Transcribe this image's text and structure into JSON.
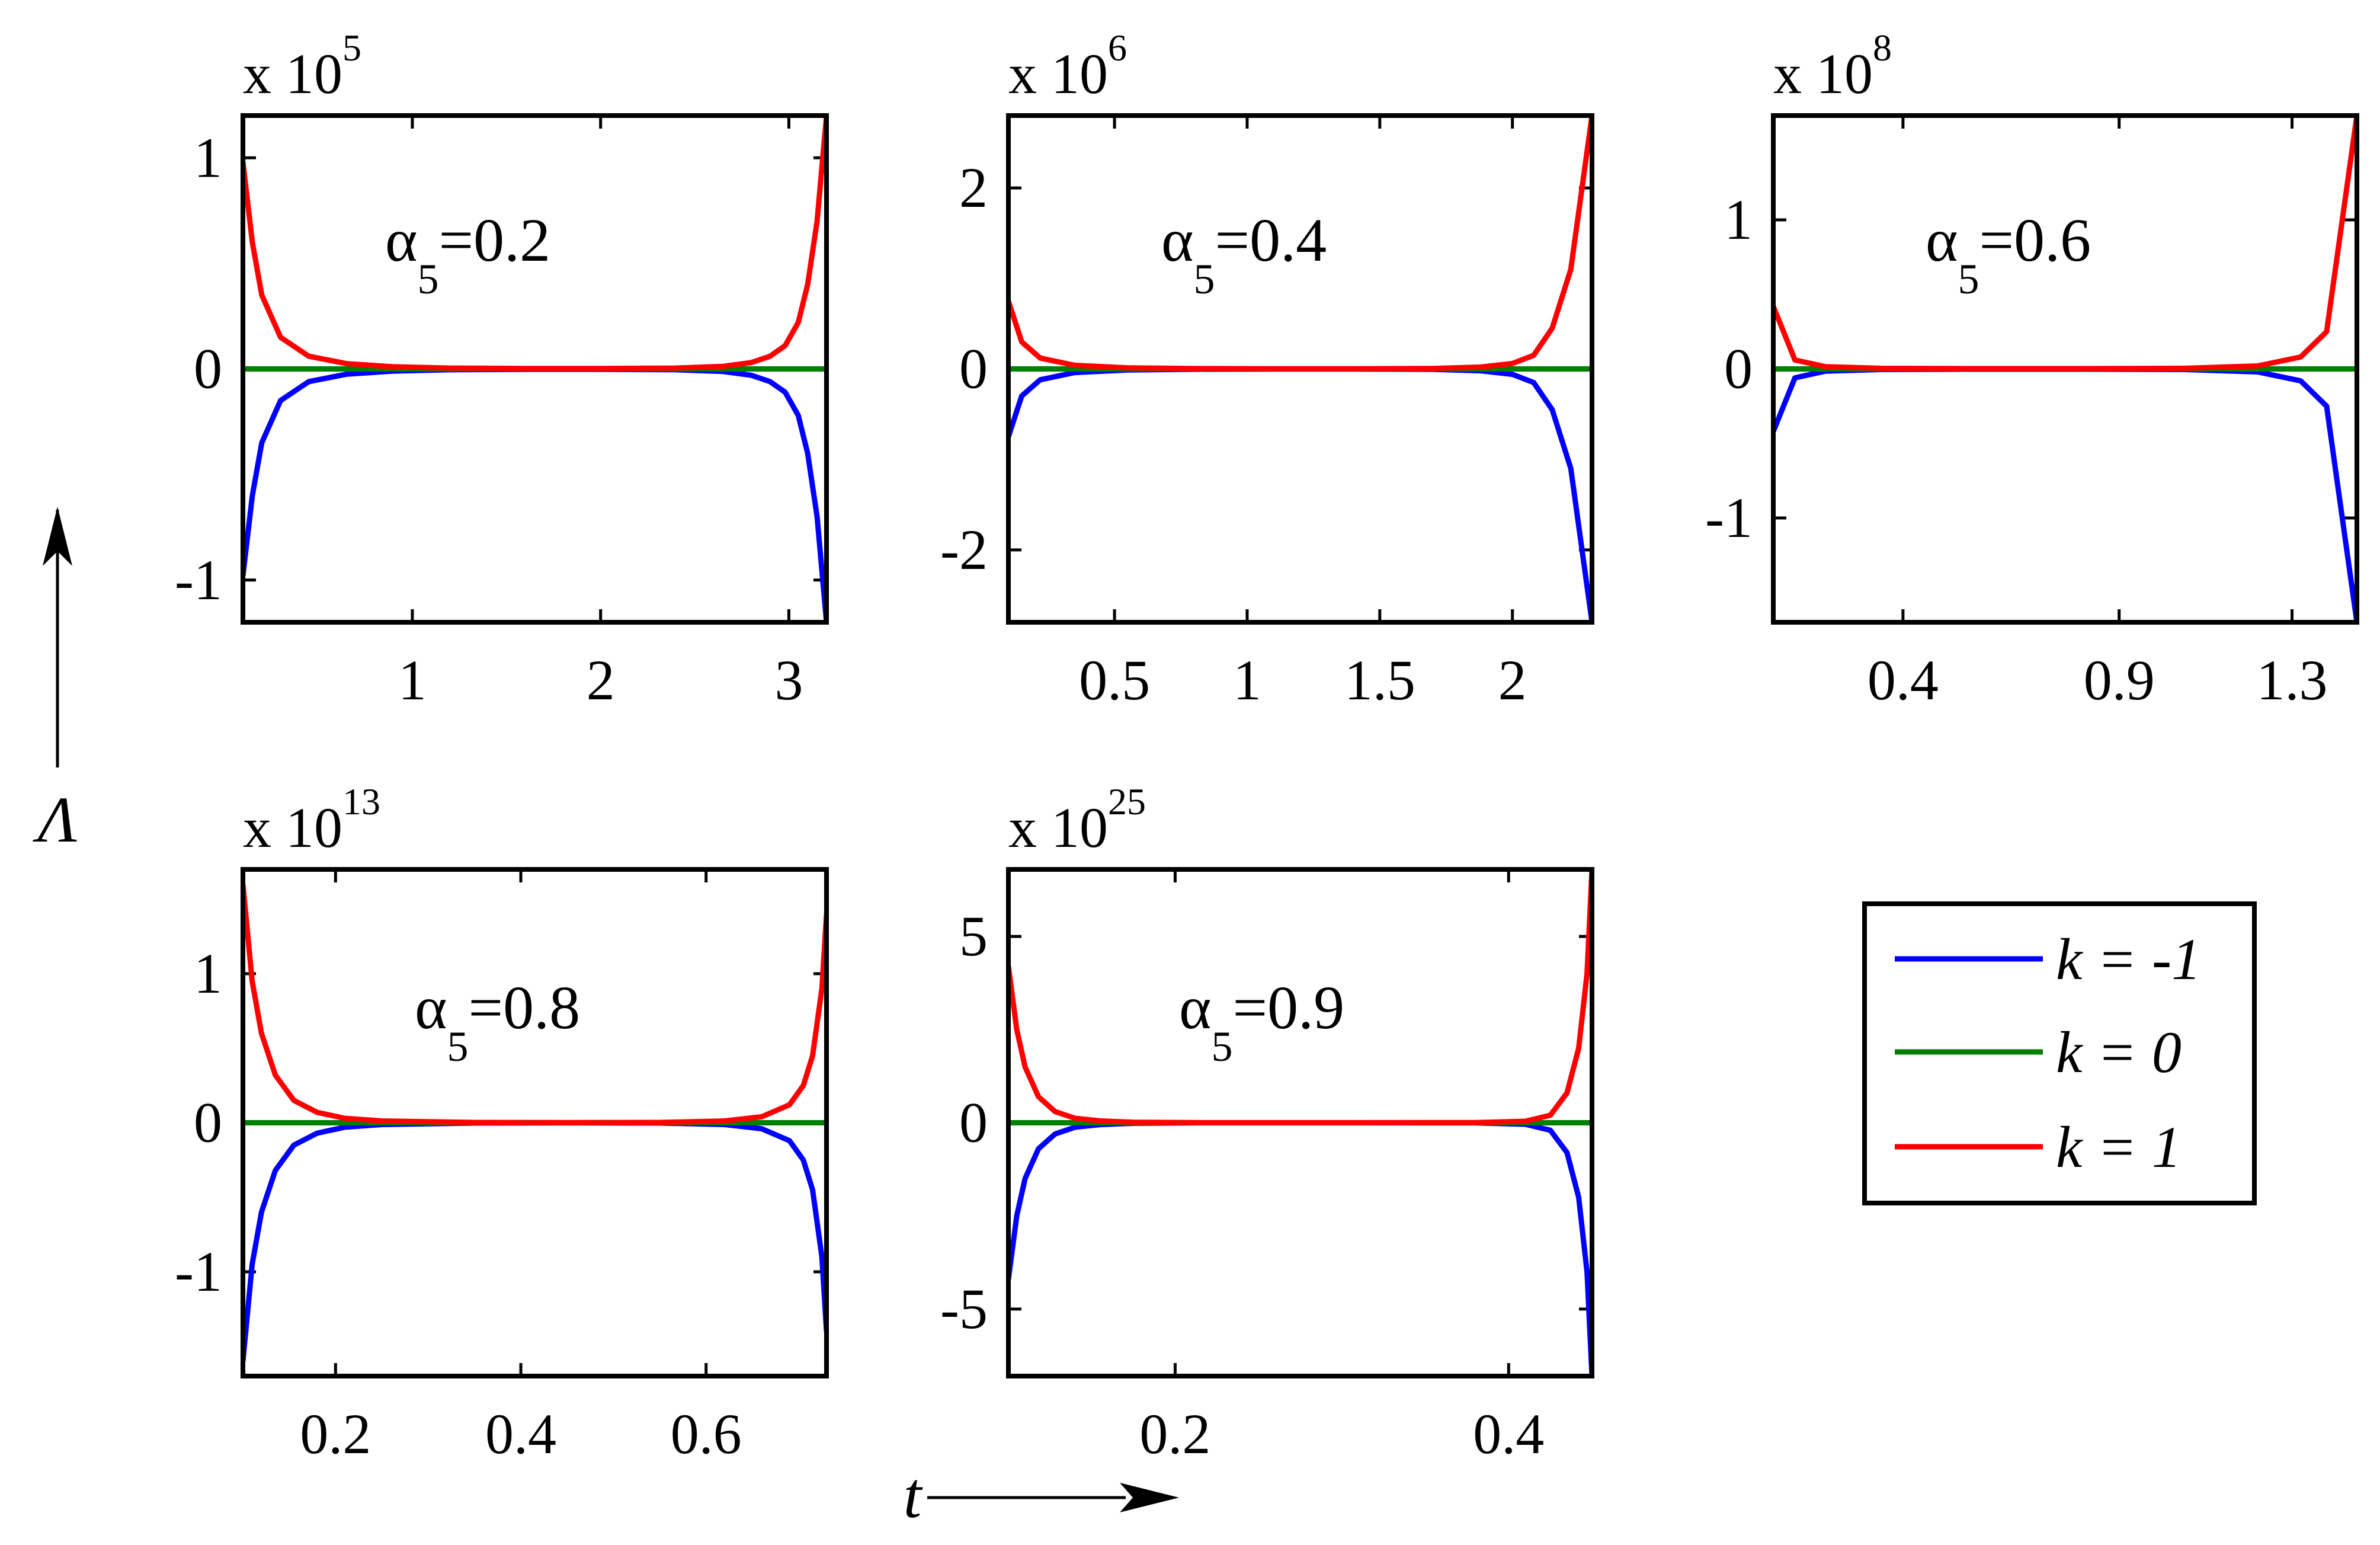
{
  "figure": {
    "y_axis_symbol": "Λ",
    "x_axis_symbol": "t"
  },
  "legend": {
    "entries": [
      {
        "label": "k = -1",
        "color": "#0000ff"
      },
      {
        "label": "k = 0",
        "color": "#008000"
      },
      {
        "label": "k = 1",
        "color": "#ff0000"
      }
    ]
  },
  "chart_data": [
    {
      "type": "line",
      "multiplier_base": "x 10",
      "multiplier_exponent": "5",
      "annotation": {
        "symbol": "α",
        "subscript": "5",
        "text": "=0.2"
      },
      "xlim": [
        0.1,
        3.2
      ],
      "ylim": [
        -1.2,
        1.2
      ],
      "xticks": [
        1,
        2,
        3
      ],
      "xtick_labels": [
        "1",
        "2",
        "3"
      ],
      "yticks": [
        -1,
        0,
        1
      ],
      "ytick_labels": [
        "-1",
        "0",
        "1"
      ],
      "series": [
        {
          "label": "k = -1",
          "x": [
            0.1,
            0.15,
            0.2,
            0.3,
            0.45,
            0.65,
            0.9,
            1.2,
            1.6,
            2.0,
            2.4,
            2.65,
            2.8,
            2.9,
            2.98,
            3.05,
            3.1,
            3.15,
            3.2
          ],
          "y": [
            -0.98,
            -0.6,
            -0.35,
            -0.15,
            -0.06,
            -0.025,
            -0.01,
            -0.004,
            -0.002,
            -0.002,
            -0.004,
            -0.012,
            -0.03,
            -0.06,
            -0.11,
            -0.22,
            -0.4,
            -0.7,
            -1.2
          ]
        },
        {
          "label": "k = 0",
          "x": [
            0.1,
            3.2
          ],
          "y": [
            0,
            0
          ]
        },
        {
          "label": "k = 1",
          "x": [
            0.1,
            0.15,
            0.2,
            0.3,
            0.45,
            0.65,
            0.9,
            1.2,
            1.6,
            2.0,
            2.4,
            2.65,
            2.8,
            2.9,
            2.98,
            3.05,
            3.1,
            3.15,
            3.2
          ],
          "y": [
            0.98,
            0.6,
            0.35,
            0.15,
            0.06,
            0.025,
            0.01,
            0.004,
            0.002,
            0.002,
            0.004,
            0.012,
            0.03,
            0.06,
            0.11,
            0.22,
            0.4,
            0.7,
            1.2
          ]
        }
      ]
    },
    {
      "type": "line",
      "multiplier_base": "x 10",
      "multiplier_exponent": "6",
      "annotation": {
        "symbol": "α",
        "subscript": "5",
        "text": "=0.4"
      },
      "xlim": [
        0.1,
        2.3
      ],
      "ylim": [
        -2.8,
        2.8
      ],
      "xticks": [
        0.5,
        1,
        1.5,
        2
      ],
      "xtick_labels": [
        "0.5",
        "1",
        "1.5",
        "2"
      ],
      "yticks": [
        -2,
        0,
        2
      ],
      "ytick_labels": [
        "-2",
        "0",
        "2"
      ],
      "series": [
        {
          "label": "k = -1",
          "x": [
            0.1,
            0.15,
            0.22,
            0.35,
            0.55,
            0.8,
            1.1,
            1.4,
            1.7,
            1.88,
            2.0,
            2.08,
            2.15,
            2.22,
            2.3
          ],
          "y": [
            -0.75,
            -0.3,
            -0.12,
            -0.04,
            -0.012,
            -0.004,
            -0.002,
            -0.002,
            -0.005,
            -0.02,
            -0.06,
            -0.15,
            -0.45,
            -1.1,
            -2.8
          ]
        },
        {
          "label": "k = 0",
          "x": [
            0.1,
            2.3
          ],
          "y": [
            0,
            0
          ]
        },
        {
          "label": "k = 1",
          "x": [
            0.1,
            0.15,
            0.22,
            0.35,
            0.55,
            0.8,
            1.1,
            1.4,
            1.7,
            1.88,
            2.0,
            2.08,
            2.15,
            2.22,
            2.3
          ],
          "y": [
            0.75,
            0.3,
            0.12,
            0.04,
            0.012,
            0.004,
            0.002,
            0.002,
            0.005,
            0.02,
            0.06,
            0.15,
            0.45,
            1.1,
            2.8
          ]
        }
      ]
    },
    {
      "type": "line",
      "multiplier_base": "x 10",
      "multiplier_exponent": "8",
      "annotation": {
        "symbol": "α",
        "subscript": "5",
        "text": "=0.6"
      },
      "xlim": [
        0.1,
        1.45
      ],
      "ylim": [
        -1.7,
        1.7
      ],
      "xticks": [
        0.4,
        0.9,
        1.3
      ],
      "xtick_labels": [
        "0.4",
        "0.9",
        "1.3"
      ],
      "yticks": [
        -1,
        0,
        1
      ],
      "ytick_labels": [
        "-1",
        "0",
        "1"
      ],
      "series": [
        {
          "label": "k = -1",
          "x": [
            0.1,
            0.15,
            0.22,
            0.35,
            0.55,
            0.8,
            1.05,
            1.22,
            1.32,
            1.38,
            1.45
          ],
          "y": [
            -0.42,
            -0.06,
            -0.015,
            -0.004,
            -0.002,
            -0.002,
            -0.004,
            -0.02,
            -0.08,
            -0.25,
            -1.7
          ]
        },
        {
          "label": "k = 0",
          "x": [
            0.1,
            1.45
          ],
          "y": [
            0,
            0
          ]
        },
        {
          "label": "k = 1",
          "x": [
            0.1,
            0.15,
            0.22,
            0.35,
            0.55,
            0.8,
            1.05,
            1.22,
            1.32,
            1.38,
            1.45
          ],
          "y": [
            0.42,
            0.06,
            0.015,
            0.004,
            0.002,
            0.002,
            0.004,
            0.02,
            0.08,
            0.25,
            1.7
          ]
        }
      ]
    },
    {
      "type": "line",
      "multiplier_base": "x 10",
      "multiplier_exponent": "13",
      "annotation": {
        "symbol": "α",
        "subscript": "5",
        "text": "=0.8"
      },
      "xlim": [
        0.1,
        0.73
      ],
      "ylim": [
        -1.7,
        1.7
      ],
      "xticks": [
        0.2,
        0.4,
        0.6
      ],
      "xtick_labels": [
        "0.2",
        "0.4",
        "0.6"
      ],
      "yticks": [
        -1,
        0,
        1
      ],
      "ytick_labels": [
        "-1",
        "0",
        "1"
      ],
      "series": [
        {
          "label": "k = -1",
          "x": [
            0.1,
            0.11,
            0.12,
            0.135,
            0.155,
            0.18,
            0.21,
            0.25,
            0.35,
            0.45,
            0.55,
            0.62,
            0.66,
            0.69,
            0.705,
            0.715,
            0.725,
            0.73
          ],
          "y": [
            -1.6,
            -0.95,
            -0.6,
            -0.32,
            -0.15,
            -0.07,
            -0.03,
            -0.012,
            -0.002,
            -0.001,
            -0.002,
            -0.012,
            -0.04,
            -0.12,
            -0.25,
            -0.45,
            -0.9,
            -1.4
          ]
        },
        {
          "label": "k = 0",
          "x": [
            0.1,
            0.73
          ],
          "y": [
            0,
            0
          ]
        },
        {
          "label": "k = 1",
          "x": [
            0.1,
            0.11,
            0.12,
            0.135,
            0.155,
            0.18,
            0.21,
            0.25,
            0.35,
            0.45,
            0.55,
            0.62,
            0.66,
            0.69,
            0.705,
            0.715,
            0.725,
            0.73
          ],
          "y": [
            1.6,
            0.95,
            0.6,
            0.32,
            0.15,
            0.07,
            0.03,
            0.012,
            0.002,
            0.001,
            0.002,
            0.012,
            0.04,
            0.12,
            0.25,
            0.45,
            0.9,
            1.4
          ]
        }
      ]
    },
    {
      "type": "line",
      "multiplier_base": "x 10",
      "multiplier_exponent": "25",
      "annotation": {
        "symbol": "α",
        "subscript": "5",
        "text": "=0.9"
      },
      "xlim": [
        0.1,
        0.45
      ],
      "ylim": [
        -6.8,
        6.8
      ],
      "xticks": [
        0.2,
        0.4
      ],
      "xtick_labels": [
        "0.2",
        "0.4"
      ],
      "yticks": [
        -5,
        0,
        5
      ],
      "ytick_labels": [
        "-5",
        "0",
        "5"
      ],
      "series": [
        {
          "label": "k = -1",
          "x": [
            0.1,
            0.105,
            0.11,
            0.118,
            0.128,
            0.14,
            0.155,
            0.175,
            0.22,
            0.3,
            0.38,
            0.41,
            0.425,
            0.435,
            0.442,
            0.447,
            0.45
          ],
          "y": [
            -4.2,
            -2.5,
            -1.5,
            -0.7,
            -0.3,
            -0.12,
            -0.05,
            -0.015,
            -0.002,
            -0.001,
            -0.005,
            -0.04,
            -0.2,
            -0.8,
            -2.0,
            -4.0,
            -6.8
          ]
        },
        {
          "label": "k = 0",
          "x": [
            0.1,
            0.45
          ],
          "y": [
            0,
            0
          ]
        },
        {
          "label": "k = 1",
          "x": [
            0.1,
            0.105,
            0.11,
            0.118,
            0.128,
            0.14,
            0.155,
            0.175,
            0.22,
            0.3,
            0.38,
            0.41,
            0.425,
            0.435,
            0.442,
            0.447,
            0.45
          ],
          "y": [
            4.2,
            2.5,
            1.5,
            0.7,
            0.3,
            0.12,
            0.05,
            0.015,
            0.002,
            0.001,
            0.005,
            0.04,
            0.2,
            0.8,
            2.0,
            4.0,
            6.8
          ]
        }
      ]
    }
  ]
}
